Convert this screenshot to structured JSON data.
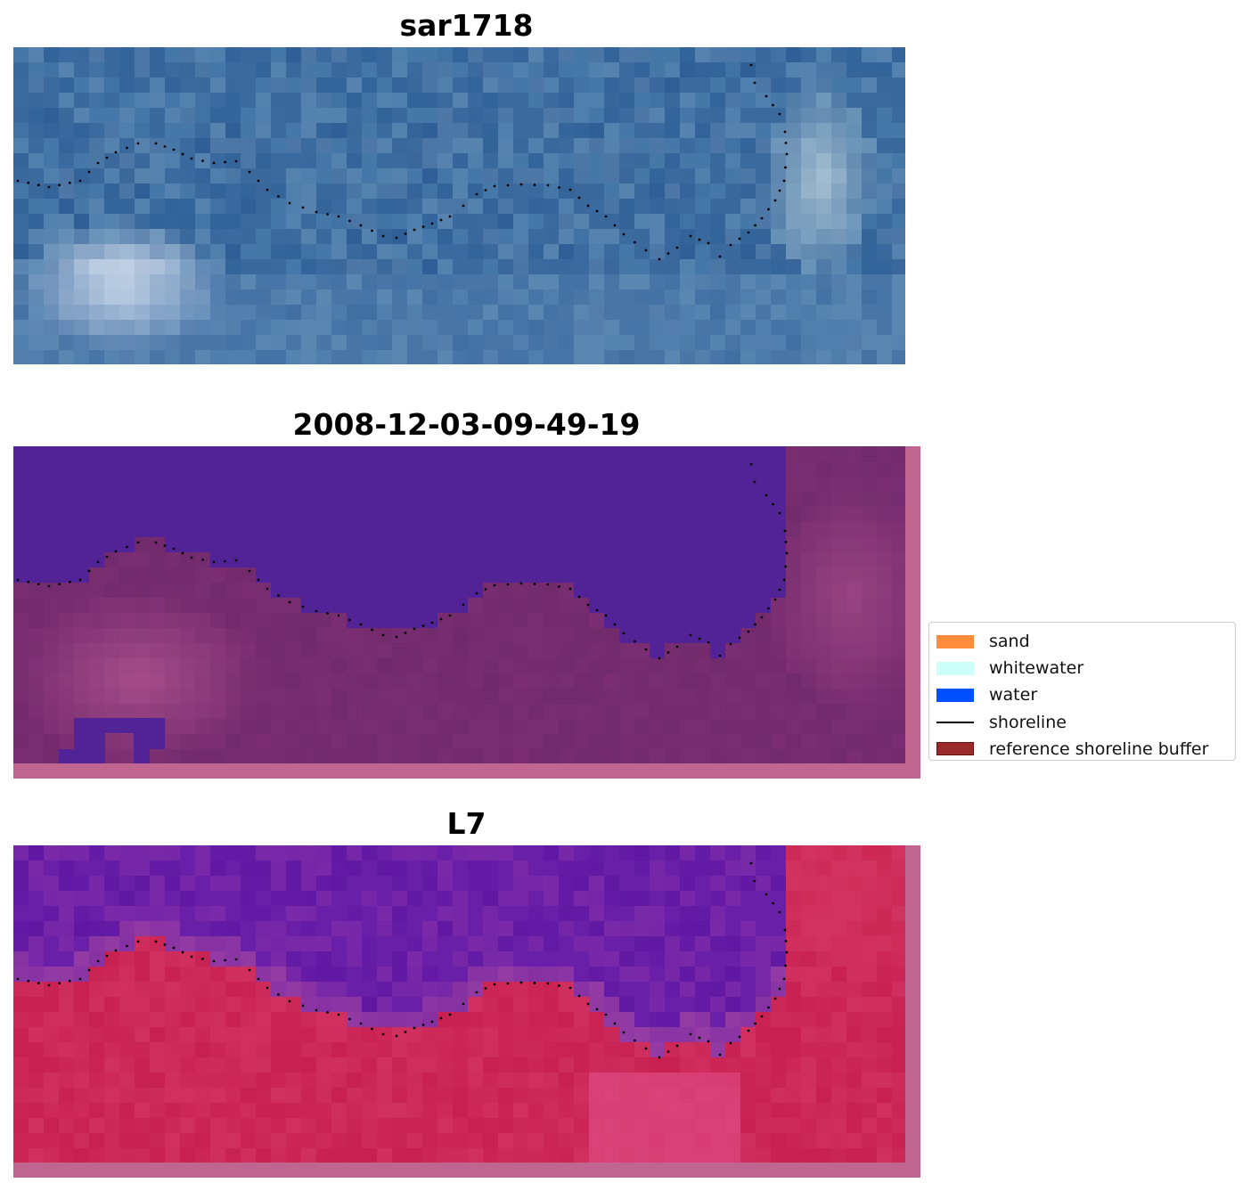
{
  "panels": [
    {
      "id": "rgb",
      "title": "sar1718",
      "image_description": "RGB satellite image tile",
      "palette": [
        "#3a6a9e",
        "#2f5f96",
        "#4a7eac",
        "#5e86b0"
      ],
      "highlight": "#e9eef8"
    },
    {
      "id": "classification",
      "title": "2008-12-03-09-49-19",
      "image_description": "classified image with water mask",
      "water_color": "#522396",
      "land_palette": [
        "#7a2d72",
        "#a24a86",
        "#6a2868"
      ],
      "border_color": "#c06490"
    },
    {
      "id": "mndwi",
      "title": "L7",
      "image_description": "MNDWI index image",
      "water_palette": [
        "#6a1fa8",
        "#5b14a0",
        "#7a2aa8"
      ],
      "land_palette": [
        "#d03060",
        "#c82050",
        "#e0508a"
      ],
      "border_color": "#c06490"
    }
  ],
  "legend": {
    "items": [
      {
        "label": "sand",
        "color": "#ff8c3a",
        "kind": "patch"
      },
      {
        "label": "whitewater",
        "color": "#ccfff8",
        "kind": "patch"
      },
      {
        "label": "water",
        "color": "#0050ff",
        "kind": "patch"
      },
      {
        "label": "shoreline",
        "color": "#000000",
        "kind": "line"
      },
      {
        "label": "reference shoreline buffer",
        "color": "#9a2a2a",
        "kind": "patch"
      }
    ]
  }
}
